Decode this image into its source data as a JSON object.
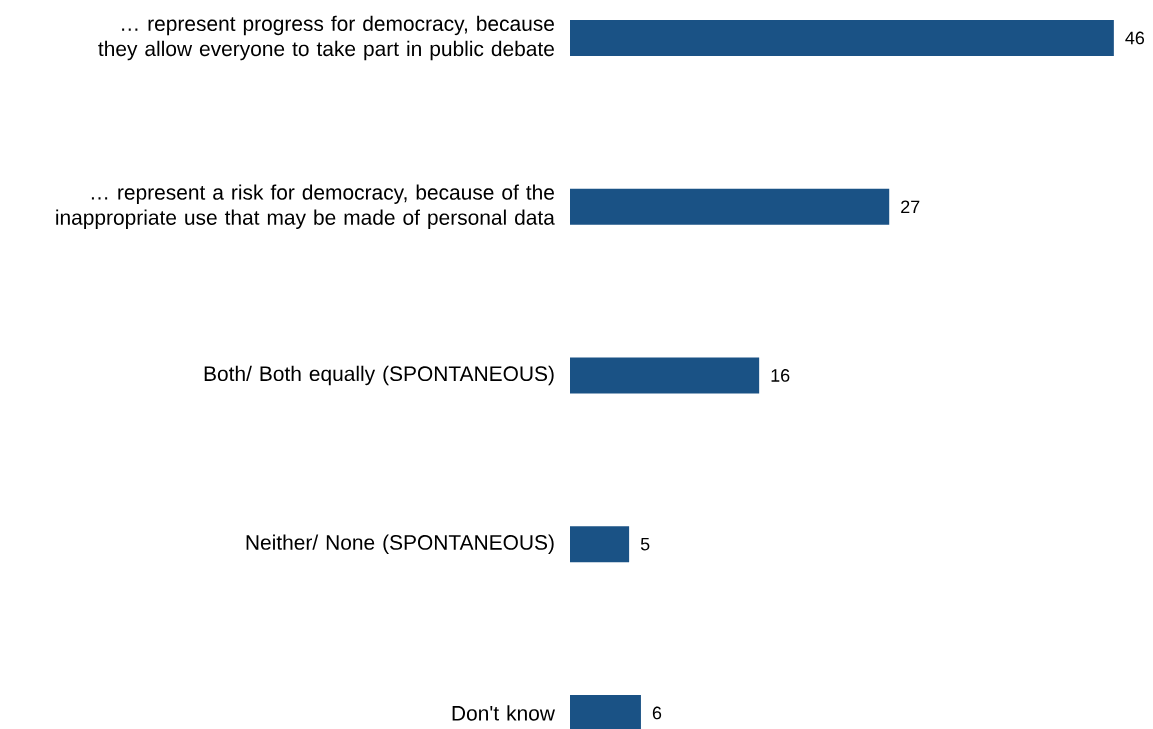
{
  "chart_data": {
    "type": "bar",
    "orientation": "horizontal",
    "categories": [
      "… represent progress for democracy, because they allow everyone to take part in public debate",
      "… represent a risk for democracy, because of the inappropriate use that may be made of personal data",
      "Both/ Both equally (SPONTANEOUS)",
      "Neither/ None (SPONTANEOUS)",
      "Don't know"
    ],
    "values": [
      46,
      27,
      16,
      5,
      6
    ],
    "color": "#1a5285",
    "data_labels": true
  }
}
